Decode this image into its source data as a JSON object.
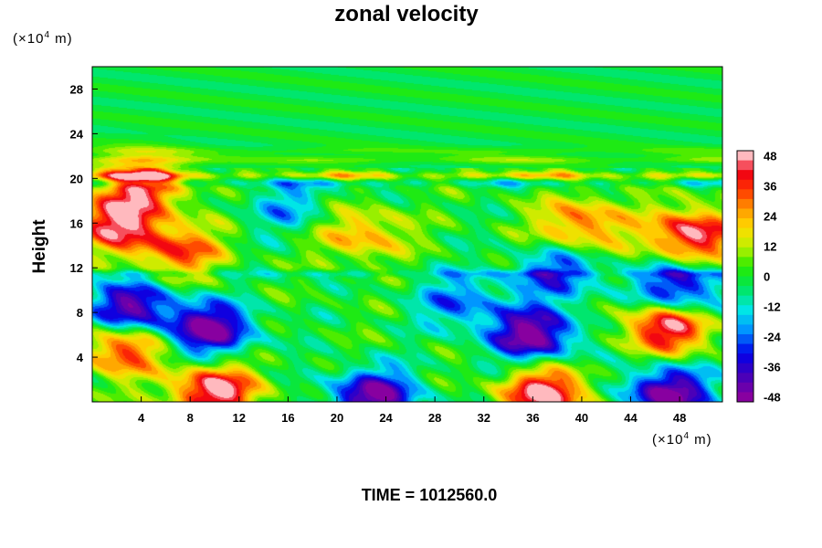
{
  "chart_data": {
    "type": "heatmap",
    "title": "zonal velocity",
    "ylabel": "Height",
    "xunit_prefix": "(×10",
    "xunit_exp": "4",
    "xunit_suffix": " m)",
    "yunit_prefix": "(×10",
    "yunit_exp": "4",
    "yunit_suffix": " m)",
    "xlim": [
      0,
      51.5
    ],
    "ylim": [
      0,
      30
    ],
    "xticks": [
      4,
      8,
      12,
      16,
      20,
      24,
      28,
      32,
      36,
      40,
      44,
      48
    ],
    "yticks": [
      4,
      8,
      12,
      16,
      20,
      24,
      28
    ],
    "colorbar": {
      "range": [
        -50,
        50
      ],
      "ticks": [
        48,
        36,
        24,
        12,
        0,
        -12,
        -24,
        -36,
        -48
      ]
    },
    "features": [
      {
        "x": 9.5,
        "y": 6.5,
        "value": -50
      },
      {
        "x": 3.0,
        "y": 8.5,
        "value": -44
      },
      {
        "x": 36.0,
        "y": 6.0,
        "value": -50
      },
      {
        "x": 23.0,
        "y": 0.5,
        "value": -48
      },
      {
        "x": 47.0,
        "y": 0.8,
        "value": -50
      },
      {
        "x": 48.0,
        "y": 10.0,
        "value": -42
      },
      {
        "x": 10.0,
        "y": 1.0,
        "value": 50
      },
      {
        "x": 37.0,
        "y": 0.8,
        "value": 50
      },
      {
        "x": 47.0,
        "y": 6.8,
        "value": 50
      },
      {
        "x": 2.0,
        "y": 16.0,
        "value": 44
      },
      {
        "x": 49.0,
        "y": 15.0,
        "value": 48
      },
      {
        "x": 4.0,
        "y": 19.5,
        "value": 40
      },
      {
        "x": 7.0,
        "y": 13.5,
        "value": 34
      },
      {
        "x": 2.5,
        "y": 4.8,
        "value": 38
      },
      {
        "x": 22.0,
        "y": 15.0,
        "value": 26
      },
      {
        "x": 40.0,
        "y": 16.0,
        "value": 32
      },
      {
        "x": 16.0,
        "y": 17.5,
        "value": -18
      },
      {
        "x": 30.0,
        "y": 9.0,
        "value": -24
      },
      {
        "x": 38.0,
        "y": 11.5,
        "value": -28
      }
    ],
    "bands": [
      {
        "y": 20.3,
        "value": 28
      },
      {
        "y": 19.6,
        "value": -16
      },
      {
        "y": 21.7,
        "value": 16
      },
      {
        "y": 22.5,
        "value": 10
      },
      {
        "y": 11.5,
        "value": -16
      }
    ]
  },
  "time_label": "TIME = 1012560.0"
}
